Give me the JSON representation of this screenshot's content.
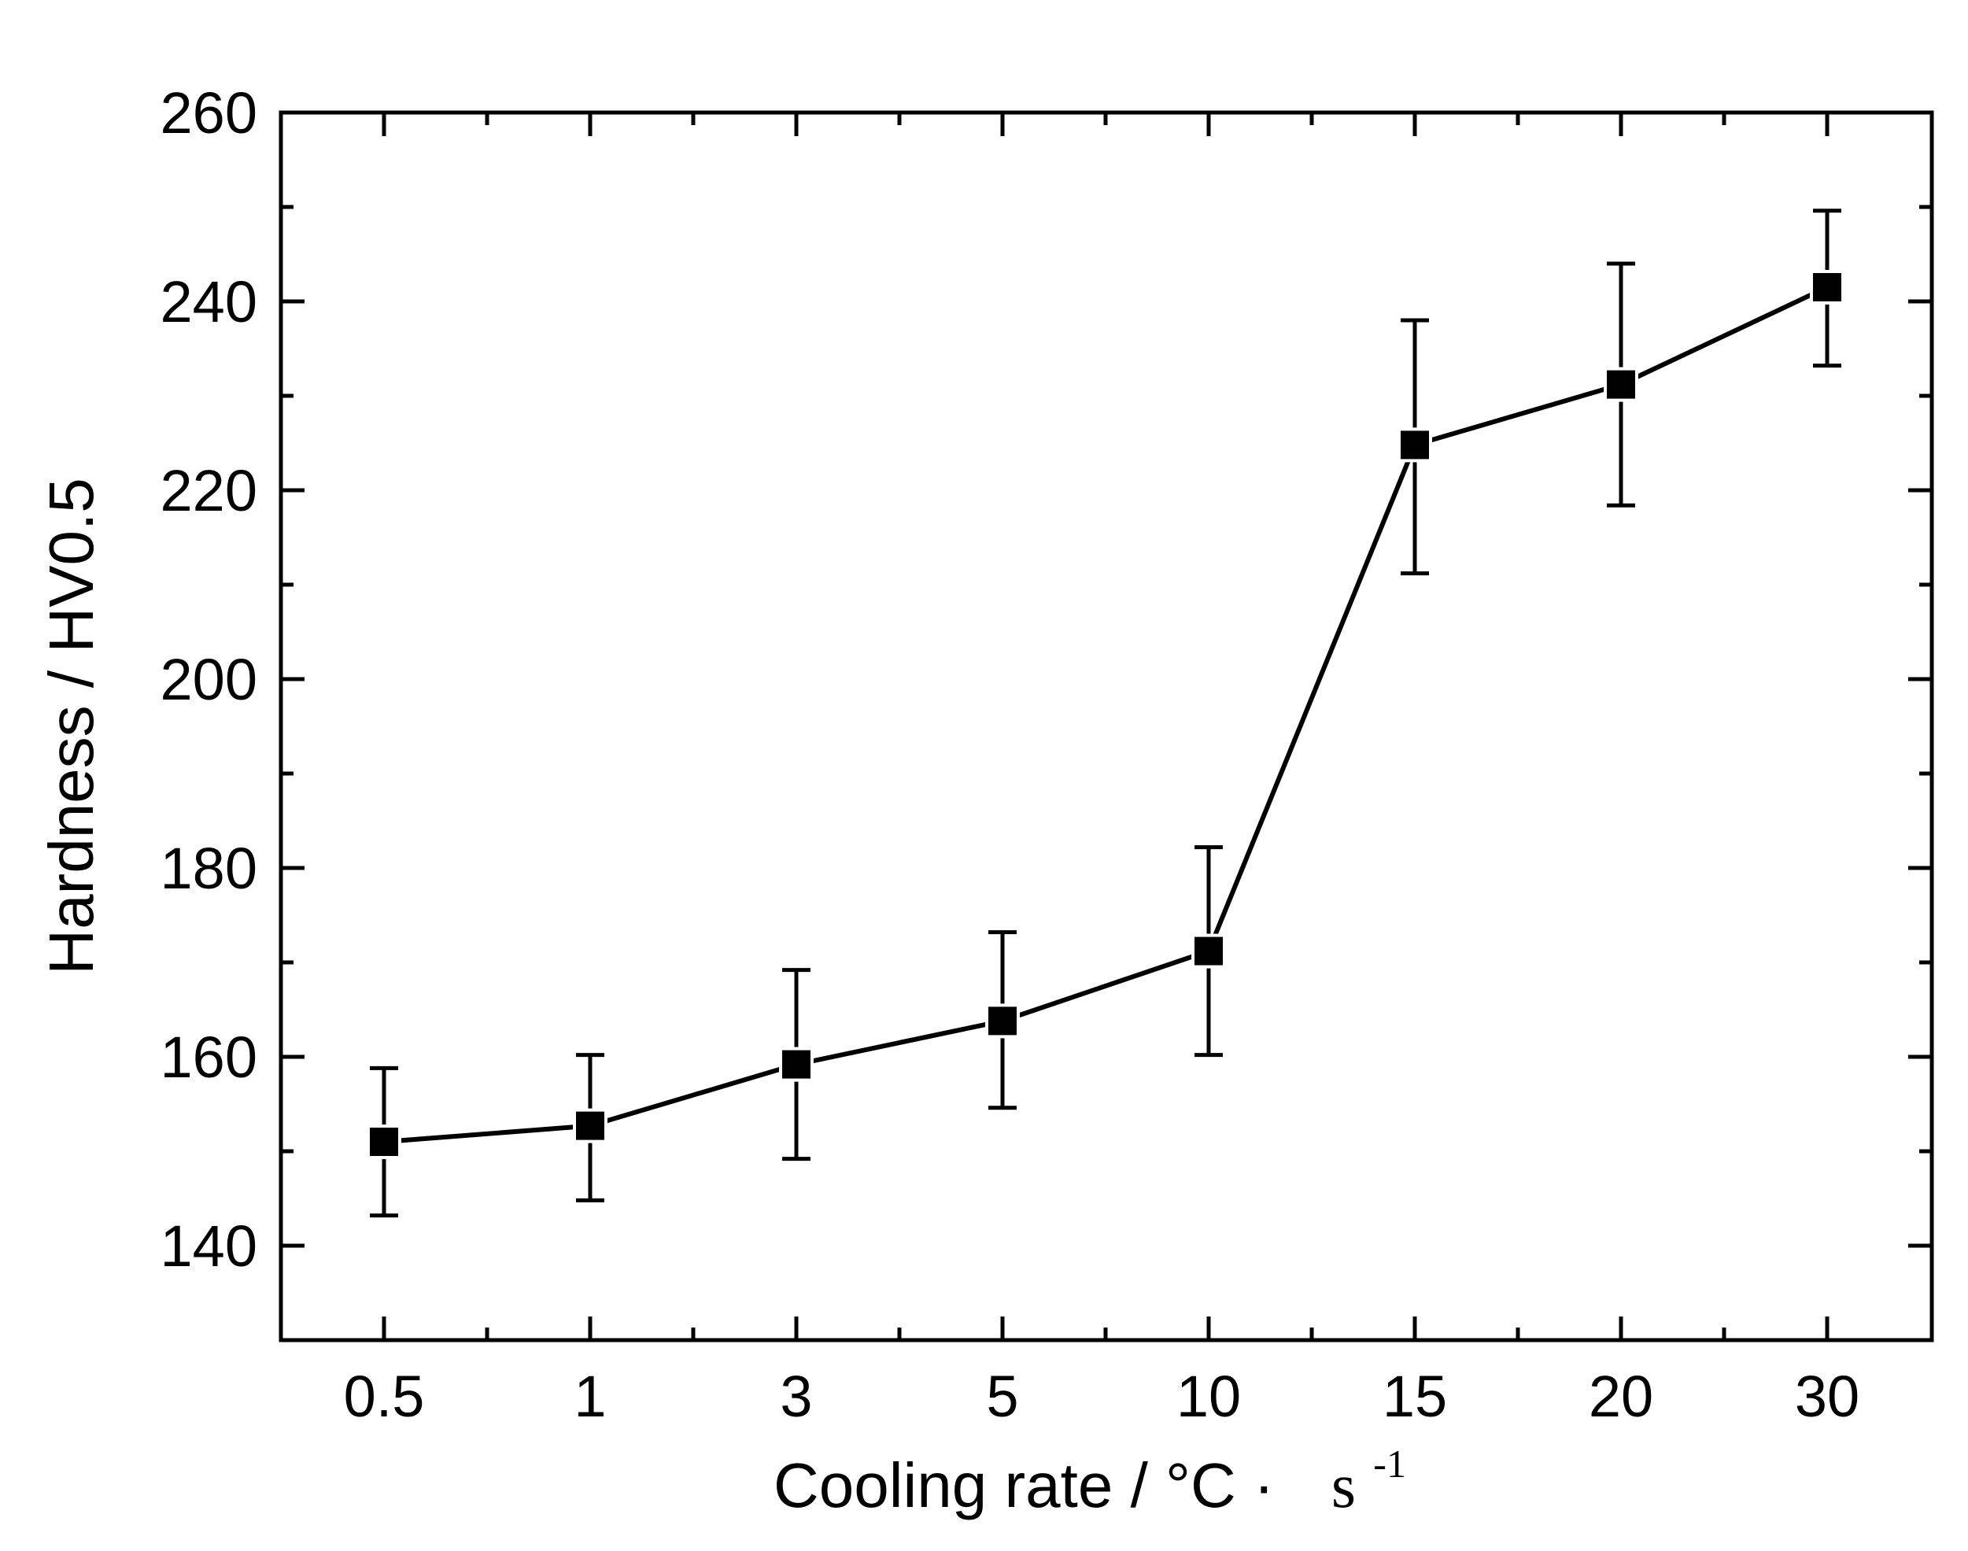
{
  "chart_data": {
    "type": "line",
    "title": "",
    "xlabel": "Cooling rate / °C· s",
    "xlabel_prefix": "Cooling rate / °C",
    "xlabel_dot": "·",
    "xlabel_unit": "s",
    "xlabel_superscript": "-1",
    "ylabel": "Hardness / HV0.5",
    "categories": [
      "0.5",
      "1",
      "3",
      "5",
      "10",
      "15",
      "20",
      "30"
    ],
    "ylim": [
      130,
      260
    ],
    "y_ticks": [
      140,
      160,
      180,
      200,
      220,
      240,
      260
    ],
    "y_minor_ticks": [
      130,
      150,
      170,
      190,
      210,
      230,
      250
    ],
    "grid": false,
    "series": [
      {
        "name": "Hardness",
        "marker": "square",
        "color": "#000000",
        "values": [
          151,
          152.7,
          159.2,
          163.8,
          171.2,
          224.8,
          231.2,
          241.5
        ],
        "error_low": [
          143.2,
          144.8,
          149.2,
          154.6,
          160.2,
          211.2,
          218.4,
          233.2
        ],
        "error_high": [
          158.8,
          160.2,
          169.2,
          173.2,
          182.2,
          238.0,
          244.0,
          249.6
        ]
      }
    ]
  }
}
